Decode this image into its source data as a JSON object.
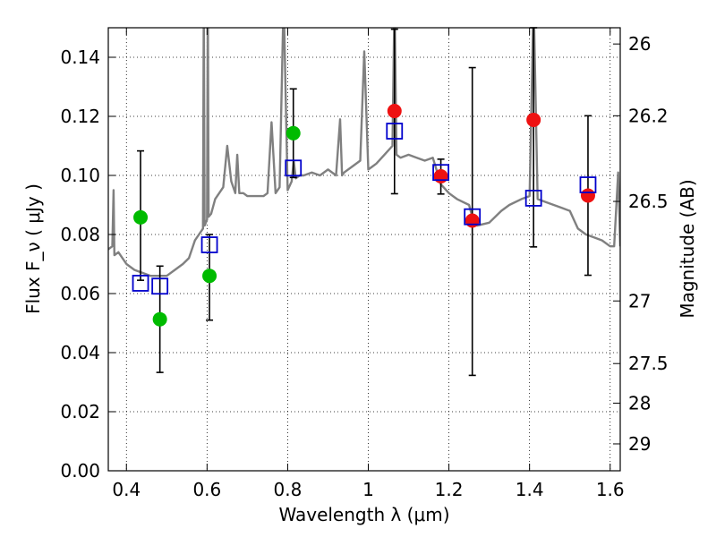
{
  "chart_data": {
    "type": "scatter",
    "xlabel": "Wavelength  λ (μm)",
    "ylabel": "Flux  F_ν  ( μJy )",
    "ylabel_right": "Magnitude (AB)",
    "xlim": [
      0.355,
      1.625
    ],
    "ylim": [
      0.0,
      0.15
    ],
    "grid": true,
    "x_ticks": [
      0.4,
      0.6,
      0.8,
      1.0,
      1.2,
      1.4,
      1.6
    ],
    "x_tick_labels": [
      "0.4",
      "0.6",
      "0.8",
      "1",
      "1.2",
      "1.4",
      "1.6"
    ],
    "y_ticks": [
      0.0,
      0.02,
      0.04,
      0.06,
      0.08,
      0.1,
      0.12,
      0.14
    ],
    "y_tick_labels": [
      "0.00",
      "0.02",
      "0.04",
      "0.06",
      "0.08",
      "0.10",
      "0.12",
      "0.14"
    ],
    "right_ticks": [
      {
        "label": "26",
        "flux": 0.1445
      },
      {
        "label": "26.2",
        "flux": 0.1202
      },
      {
        "label": "26.5",
        "flux": 0.0912
      },
      {
        "label": "27",
        "flux": 0.0575
      },
      {
        "label": "27.5",
        "flux": 0.0363
      },
      {
        "label": "28",
        "flux": 0.0229
      },
      {
        "label": "29",
        "flux": 0.0091
      }
    ],
    "series": [
      {
        "name": "observed_optical",
        "marker": "circle",
        "color": "#00bb00",
        "points": [
          {
            "x": 0.435,
            "y": 0.0858,
            "err_lo": 0.0645,
            "err_hi": 0.1083
          },
          {
            "x": 0.483,
            "y": 0.0513,
            "err_lo": 0.0333,
            "err_hi": 0.0693
          },
          {
            "x": 0.606,
            "y": 0.066,
            "err_lo": 0.051,
            "err_hi": 0.08
          },
          {
            "x": 0.814,
            "y": 0.1143,
            "err_lo": 0.0993,
            "err_hi": 0.1293
          }
        ]
      },
      {
        "name": "observed_nir",
        "marker": "circle",
        "color": "#ee1111",
        "points": [
          {
            "x": 1.065,
            "y": 0.1218,
            "err_lo": 0.0938,
            "err_hi": 0.1495
          },
          {
            "x": 1.18,
            "y": 0.0997,
            "err_lo": 0.0937,
            "err_hi": 0.1055
          },
          {
            "x": 1.258,
            "y": 0.0847,
            "err_lo": 0.0323,
            "err_hi": 0.1365
          },
          {
            "x": 1.41,
            "y": 0.1188,
            "err_lo": 0.0758,
            "err_hi": 0.15
          },
          {
            "x": 1.545,
            "y": 0.0932,
            "err_lo": 0.0662,
            "err_hi": 0.1202
          }
        ]
      },
      {
        "name": "model_photometry",
        "marker": "square",
        "color": "#0000cc",
        "points": [
          {
            "x": 0.435,
            "y": 0.0635
          },
          {
            "x": 0.483,
            "y": 0.0625
          },
          {
            "x": 0.606,
            "y": 0.0765
          },
          {
            "x": 0.814,
            "y": 0.1025
          },
          {
            "x": 1.065,
            "y": 0.115
          },
          {
            "x": 1.18,
            "y": 0.101
          },
          {
            "x": 1.258,
            "y": 0.086
          },
          {
            "x": 1.41,
            "y": 0.0923
          },
          {
            "x": 1.545,
            "y": 0.0968
          }
        ]
      }
    ],
    "model_spectrum": {
      "name": "template_sed",
      "color": "#808080",
      "x": [
        0.355,
        0.365,
        0.368,
        0.37,
        0.38,
        0.4,
        0.42,
        0.44,
        0.46,
        0.48,
        0.5,
        0.52,
        0.54,
        0.555,
        0.57,
        0.58,
        0.59,
        0.592,
        0.594,
        0.6,
        0.602,
        0.604,
        0.61,
        0.62,
        0.63,
        0.64,
        0.65,
        0.66,
        0.67,
        0.675,
        0.68,
        0.69,
        0.7,
        0.72,
        0.74,
        0.75,
        0.76,
        0.77,
        0.78,
        0.79,
        0.8,
        0.81,
        0.815,
        0.82,
        0.83,
        0.84,
        0.86,
        0.88,
        0.9,
        0.92,
        0.93,
        0.935,
        0.94,
        0.96,
        0.98,
        0.99,
        1.0,
        1.01,
        1.02,
        1.04,
        1.06,
        1.065,
        1.07,
        1.08,
        1.1,
        1.12,
        1.14,
        1.16,
        1.18,
        1.2,
        1.22,
        1.25,
        1.26,
        1.27,
        1.3,
        1.33,
        1.35,
        1.38,
        1.4,
        1.41,
        1.42,
        1.44,
        1.46,
        1.48,
        1.5,
        1.52,
        1.54,
        1.56,
        1.58,
        1.6,
        1.61,
        1.62,
        1.625
      ],
      "y": [
        0.075,
        0.076,
        0.095,
        0.073,
        0.074,
        0.07,
        0.068,
        0.067,
        0.066,
        0.066,
        0.066,
        0.068,
        0.07,
        0.072,
        0.078,
        0.08,
        0.082,
        0.16,
        0.083,
        0.085,
        0.16,
        0.086,
        0.087,
        0.092,
        0.094,
        0.096,
        0.11,
        0.098,
        0.094,
        0.107,
        0.094,
        0.094,
        0.093,
        0.093,
        0.093,
        0.094,
        0.118,
        0.094,
        0.096,
        0.16,
        0.095,
        0.098,
        0.105,
        0.099,
        0.1,
        0.1,
        0.101,
        0.1,
        0.102,
        0.1,
        0.119,
        0.1,
        0.101,
        0.103,
        0.105,
        0.142,
        0.102,
        0.103,
        0.104,
        0.107,
        0.11,
        0.16,
        0.107,
        0.106,
        0.107,
        0.106,
        0.105,
        0.106,
        0.097,
        0.094,
        0.092,
        0.09,
        0.085,
        0.083,
        0.084,
        0.088,
        0.09,
        0.092,
        0.093,
        0.16,
        0.092,
        0.091,
        0.09,
        0.089,
        0.088,
        0.082,
        0.08,
        0.079,
        0.078,
        0.076,
        0.076,
        0.101,
        0.076
      ]
    }
  }
}
